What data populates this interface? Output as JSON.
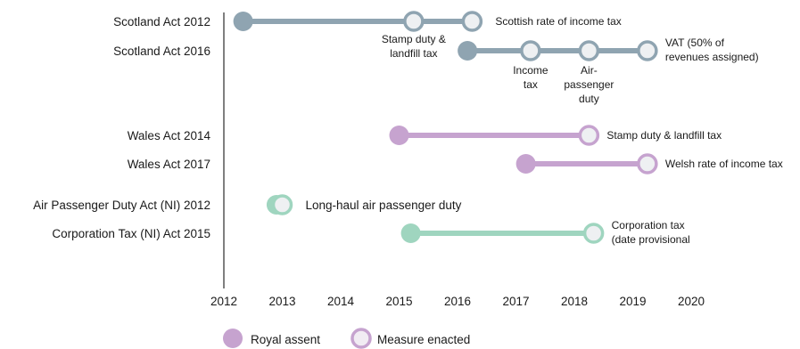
{
  "chart_data": {
    "type": "timeline",
    "xlim": [
      2012,
      2020
    ],
    "ticks": [
      "2012",
      "2013",
      "2014",
      "2015",
      "2016",
      "2017",
      "2018",
      "2019",
      "2020"
    ],
    "legend": {
      "assent_label": "Royal assent",
      "enacted_label": "Measure enacted",
      "placement": "bottom"
    },
    "colors": {
      "scotland": "#8fa4b1",
      "scotland_dark": "#8fa4b1",
      "wales": "#c6a3cf",
      "ni": "#9fd5bf",
      "legend_assent": "#c6a3cf",
      "legend_enacted": "#c6a3cf",
      "axis": "#555555"
    },
    "acts": [
      {
        "label": "Scotland Act 2012",
        "group": "scotland",
        "assent": 2012.33,
        "enacted": [
          {
            "x": 2015.25,
            "label": [
              "Stamp duty &",
              "landfill tax"
            ]
          },
          {
            "x": 2016.25,
            "label": [
              "Scottish rate of income tax"
            ]
          }
        ]
      },
      {
        "label": "Scotland Act 2016",
        "group": "scotland",
        "assent": 2016.17,
        "enacted": [
          {
            "x": 2017.25,
            "label": [
              "Income",
              "tax"
            ]
          },
          {
            "x": 2018.25,
            "label": [
              "Air-",
              "passenger",
              "duty"
            ]
          },
          {
            "x": 2019.25,
            "label": [
              "VAT (50% of",
              "revenues assigned)"
            ]
          }
        ]
      },
      {
        "label": "Wales Act 2014",
        "group": "wales",
        "assent": 2015.0,
        "enacted": [
          {
            "x": 2018.25,
            "label": [
              "Stamp duty & landfill tax"
            ]
          }
        ]
      },
      {
        "label": "Wales Act 2017",
        "group": "wales",
        "assent": 2017.17,
        "enacted": [
          {
            "x": 2019.25,
            "label": [
              "Welsh rate of income tax"
            ]
          }
        ]
      },
      {
        "label": "Air Passenger Duty Act (NI) 2012",
        "group": "ni",
        "assent": 2012.9,
        "enacted": [
          {
            "x": 2013.0,
            "label": [
              "Long-haul air passenger duty"
            ]
          }
        ]
      },
      {
        "label": "Corporation Tax (NI) Act 2015",
        "group": "ni",
        "assent": 2015.2,
        "enacted": [
          {
            "x": 2018.33,
            "label": [
              "Corporation tax",
              "(date provisional"
            ]
          }
        ]
      }
    ]
  }
}
